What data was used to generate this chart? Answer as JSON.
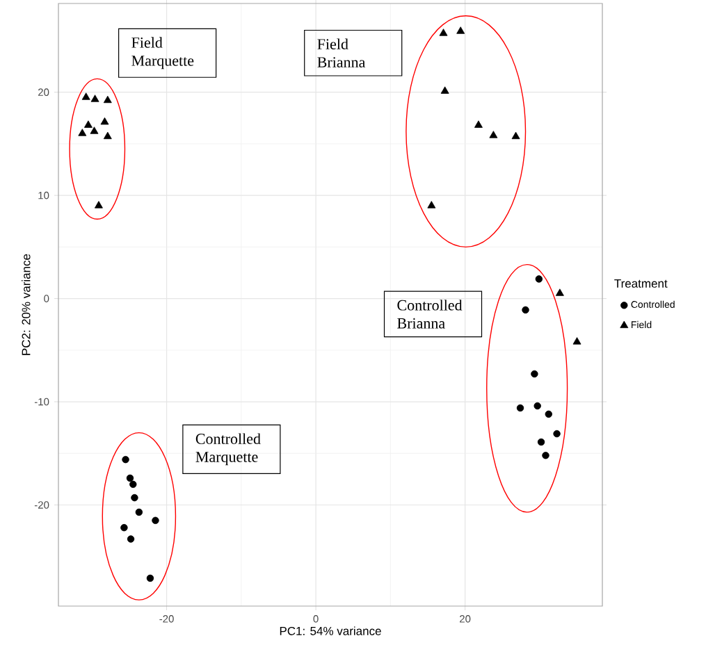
{
  "chart_data": {
    "type": "scatter",
    "xlabel": "PC1: 54% variance",
    "ylabel": "PC2: 20% variance",
    "legend_title": "Treatment",
    "xlim": [
      -34.5,
      38.4
    ],
    "ylim": [
      -29.8,
      28.6
    ],
    "xticks": [
      -20,
      0,
      20
    ],
    "yticks": [
      -20,
      -10,
      0,
      10,
      20
    ],
    "grid": true,
    "legend": "right",
    "series": [
      {
        "name": "Controlled",
        "color": "#000000",
        "marker": "circle",
        "x": [
          29.9,
          28.1,
          29.3,
          27.4,
          29.7,
          31.2,
          32.3,
          30.2,
          30.8,
          -25.5,
          -24.9,
          -24.5,
          -24.3,
          -23.7,
          -21.5,
          -25.7,
          -24.8,
          -22.2
        ],
        "values": [
          1.9,
          -1.1,
          -7.3,
          -10.6,
          -10.4,
          -11.2,
          -13.1,
          -13.9,
          -15.2,
          -15.6,
          -17.4,
          -18.0,
          -19.3,
          -20.7,
          -21.5,
          -22.2,
          -23.3,
          -27.1
        ]
      },
      {
        "name": "Field",
        "color": "#000000",
        "marker": "triangle",
        "x": [
          -30.8,
          -29.6,
          -27.9,
          -30.5,
          -29.7,
          -28.3,
          -31.3,
          -27.9,
          -29.1,
          17.1,
          19.4,
          17.3,
          21.8,
          23.8,
          26.8,
          15.5,
          32.7,
          35.0
        ],
        "values": [
          19.5,
          19.3,
          19.2,
          16.8,
          16.2,
          17.1,
          16.0,
          15.7,
          9.0,
          25.7,
          25.9,
          20.1,
          16.8,
          15.8,
          15.7,
          9.0,
          0.5,
          -4.2
        ]
      }
    ],
    "annotations": [
      "Field Marquette",
      "Field Brianna",
      "Controlled Brianna",
      "Controlled Marquette"
    ]
  }
}
